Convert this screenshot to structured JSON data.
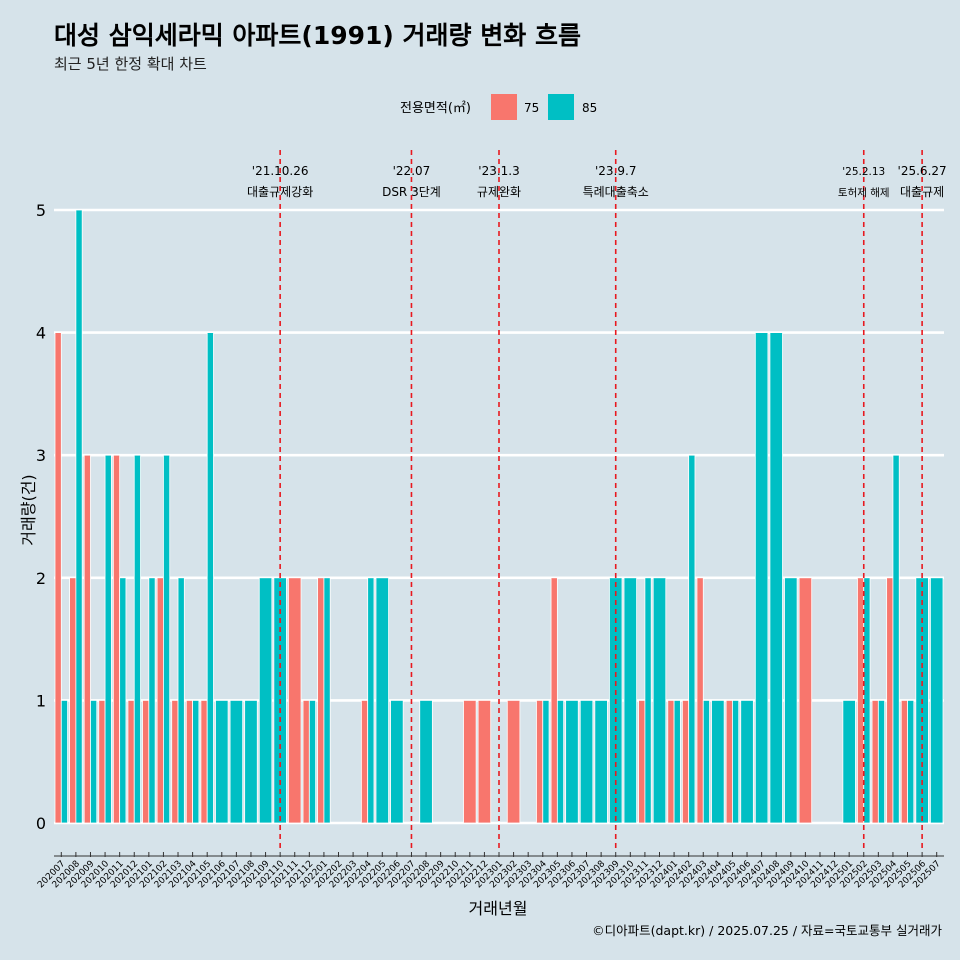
{
  "title": "대성 삼익세라믹 아파트(1991) 거래량 변화 흐름",
  "subtitle": "최근 5년 한정 확대 차트",
  "caption": "©디아파트(dapt.kr) / 2025.07.25 / 자료=국토교통부 실거래가",
  "chart_data": {
    "type": "bar",
    "title": "대성 삼익세라믹 아파트(1991) 거래량 변화 흐름",
    "xlabel": "거래년월",
    "ylabel": "거래량(건)",
    "ylim": [
      0,
      5
    ],
    "yticks": [
      0,
      1,
      2,
      3,
      4,
      5
    ],
    "legend_title": "전용면적(㎡)",
    "legend_position": "top-center",
    "colors": {
      "75": "#f8766d",
      "85": "#00bfc4"
    },
    "categories": [
      "202007",
      "202008",
      "202009",
      "202010",
      "202011",
      "202012",
      "202101",
      "202102",
      "202103",
      "202104",
      "202105",
      "202106",
      "202107",
      "202108",
      "202109",
      "202110",
      "202111",
      "202112",
      "202201",
      "202202",
      "202203",
      "202204",
      "202205",
      "202206",
      "202207",
      "202208",
      "202209",
      "202210",
      "202211",
      "202212",
      "202301",
      "202302",
      "202303",
      "202304",
      "202305",
      "202306",
      "202307",
      "202308",
      "202309",
      "202310",
      "202311",
      "202312",
      "202401",
      "202402",
      "202403",
      "202404",
      "202405",
      "202406",
      "202407",
      "202408",
      "202409",
      "202410",
      "202411",
      "202412",
      "202501",
      "202502",
      "202503",
      "202504",
      "202505",
      "202506",
      "202507"
    ],
    "series": [
      {
        "name": "75",
        "values": [
          4,
          2,
          3,
          1,
          3,
          1,
          1,
          2,
          1,
          1,
          1,
          0,
          0,
          0,
          0,
          0,
          2,
          1,
          2,
          0,
          0,
          1,
          0,
          0,
          0,
          0,
          0,
          0,
          1,
          1,
          0,
          1,
          0,
          1,
          2,
          0,
          0,
          0,
          0,
          0,
          1,
          0,
          1,
          1,
          2,
          0,
          1,
          0,
          0,
          0,
          0,
          2,
          0,
          0,
          0,
          2,
          1,
          2,
          1,
          0,
          0
        ]
      },
      {
        "name": "85",
        "values": [
          1,
          5,
          1,
          3,
          2,
          3,
          2,
          3,
          2,
          1,
          4,
          1,
          1,
          1,
          2,
          2,
          0,
          1,
          2,
          0,
          0,
          2,
          2,
          1,
          0,
          1,
          0,
          0,
          0,
          0,
          0,
          0,
          0,
          1,
          1,
          1,
          1,
          1,
          2,
          2,
          2,
          2,
          1,
          3,
          1,
          1,
          1,
          1,
          4,
          4,
          2,
          0,
          0,
          0,
          1,
          2,
          1,
          3,
          1,
          2,
          2
        ]
      }
    ],
    "annotations": [
      {
        "x": "202110",
        "date": "'21.10.26",
        "label": "대출규제강화"
      },
      {
        "x": "202207",
        "date": "'22.07",
        "label": "DSR 3단계"
      },
      {
        "x": "202301",
        "date": "'23.1.3",
        "label": "규제완화"
      },
      {
        "x": "202309",
        "date": "'23.9.7",
        "label": "특례대출축소"
      },
      {
        "x": "202502",
        "date": "'25.2.13",
        "label": "토허제 해제",
        "small": true
      },
      {
        "x": "202506",
        "date": "'25.6.27",
        "label": "대출규제"
      }
    ]
  }
}
